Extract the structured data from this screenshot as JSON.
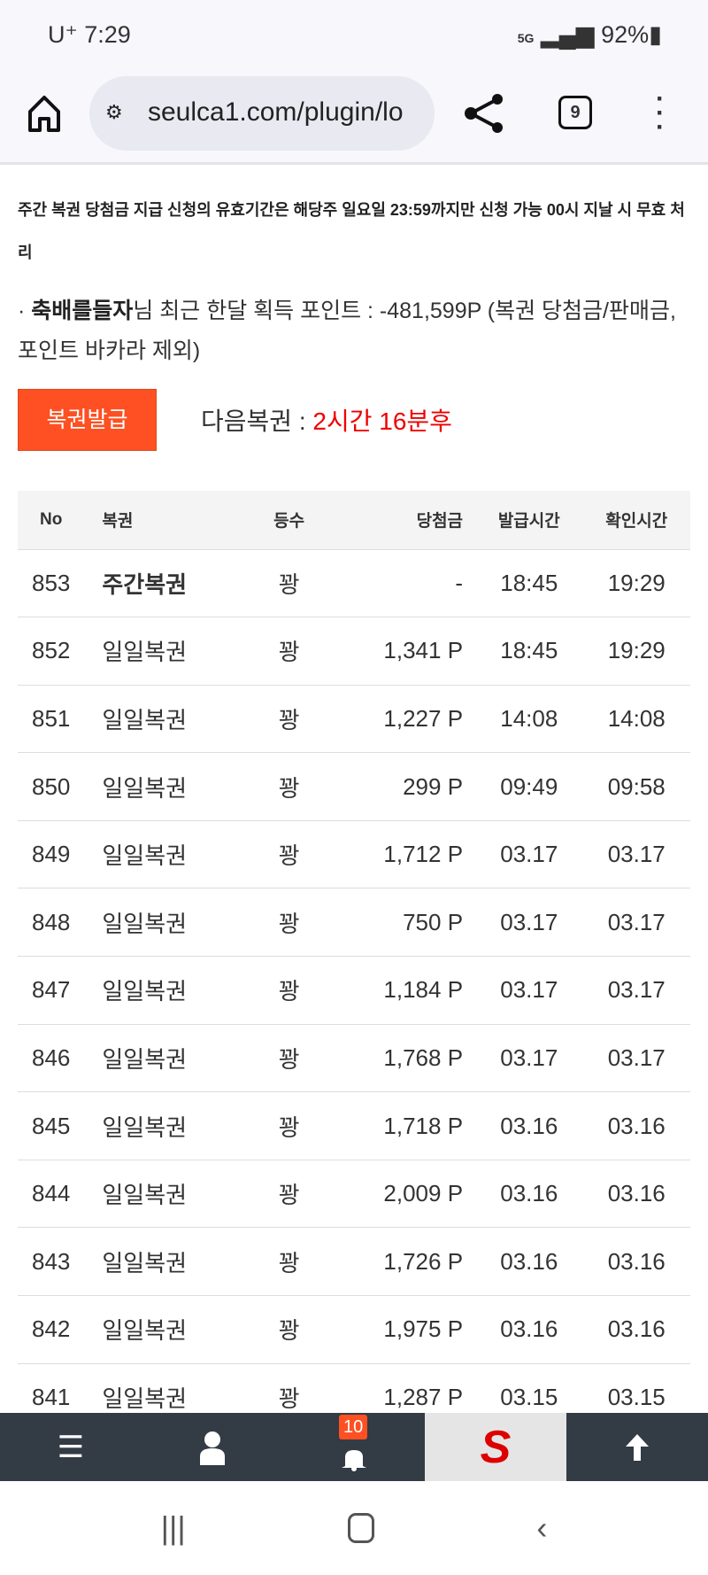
{
  "status_bar": {
    "carrier": "U⁺",
    "time": "7:29",
    "network": "5G",
    "battery": "92%"
  },
  "browser": {
    "url": "seulca1.com/plugin/lo",
    "tab_count": "9"
  },
  "notice": "주간 복권 당첨금 지급 신청의 유효기간은 해당주 일요일 23:59까지만 신청 가능 00시 지날 시 무효 처리",
  "points": {
    "bullet": "·",
    "user": "축배를들자",
    "text": "님 최근 한달 획득 포인트 : -481,599P (복권 당첨금/판매금, 포인트 바카라 제외)"
  },
  "issue_button": "복권발급",
  "accent_color": "#fe5022",
  "next": {
    "label": "다음복권 : ",
    "value": "2시간 16분후"
  },
  "table": {
    "headers": [
      "No",
      "복권",
      "등수",
      "당첨금",
      "발급시간",
      "확인시간"
    ],
    "rows": [
      [
        "853",
        "주간복권",
        "꽝",
        "-",
        "18:45",
        "19:29"
      ],
      [
        "852",
        "일일복권",
        "꽝",
        "1,341 P",
        "18:45",
        "19:29"
      ],
      [
        "851",
        "일일복권",
        "꽝",
        "1,227 P",
        "14:08",
        "14:08"
      ],
      [
        "850",
        "일일복권",
        "꽝",
        "299 P",
        "09:49",
        "09:58"
      ],
      [
        "849",
        "일일복권",
        "꽝",
        "1,712 P",
        "03.17",
        "03.17"
      ],
      [
        "848",
        "일일복권",
        "꽝",
        "750 P",
        "03.17",
        "03.17"
      ],
      [
        "847",
        "일일복권",
        "꽝",
        "1,184 P",
        "03.17",
        "03.17"
      ],
      [
        "846",
        "일일복권",
        "꽝",
        "1,768 P",
        "03.17",
        "03.17"
      ],
      [
        "845",
        "일일복권",
        "꽝",
        "1,718 P",
        "03.16",
        "03.16"
      ],
      [
        "844",
        "일일복권",
        "꽝",
        "2,009 P",
        "03.16",
        "03.16"
      ],
      [
        "843",
        "일일복권",
        "꽝",
        "1,726 P",
        "03.16",
        "03.16"
      ],
      [
        "842",
        "일일복권",
        "꽝",
        "1,975 P",
        "03.16",
        "03.16"
      ],
      [
        "841",
        "일일복권",
        "꽝",
        "1,287 P",
        "03.15",
        "03.15"
      ]
    ]
  },
  "bottom_nav": {
    "notification_count": "10",
    "logo_letter": "S"
  }
}
